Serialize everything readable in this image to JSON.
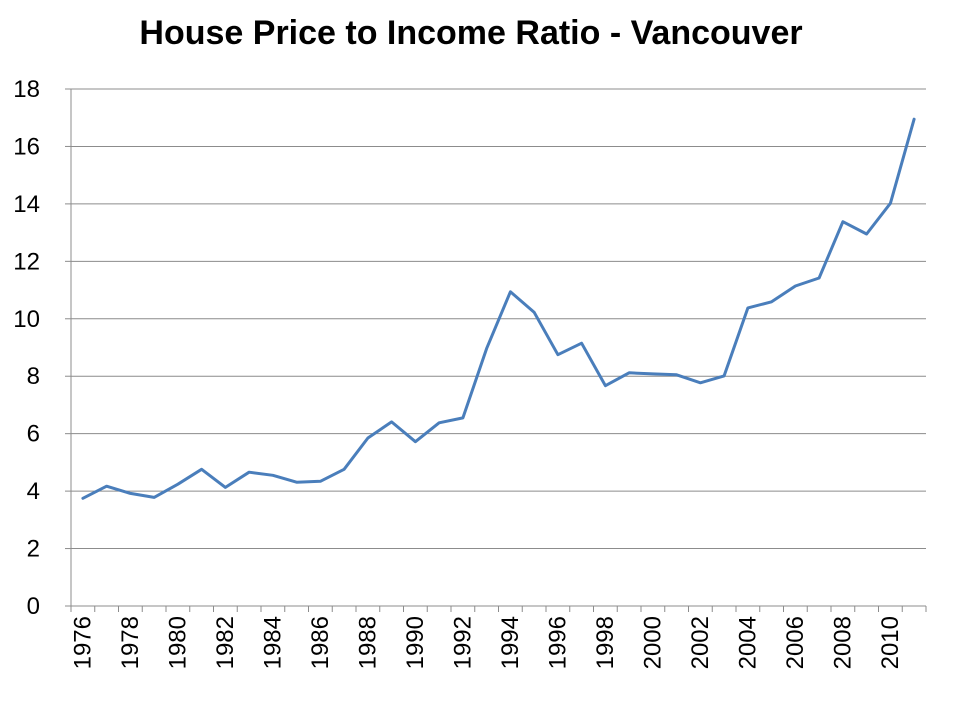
{
  "chart_data": {
    "type": "line",
    "title": "House Price to Income Ratio - Vancouver",
    "xlabel": "",
    "ylabel": "",
    "ylim": [
      0,
      18
    ],
    "y_ticks": [
      0,
      2,
      4,
      6,
      8,
      10,
      12,
      14,
      16,
      18
    ],
    "grid": true,
    "x_tick_labels": [
      "1976",
      "1978",
      "1980",
      "1982",
      "1984",
      "1986",
      "1988",
      "1990",
      "1992",
      "1994",
      "1996",
      "1998",
      "2000",
      "2002",
      "2004",
      "2006",
      "2008",
      "2010"
    ],
    "series_color": "#4a7ebb",
    "series": [
      {
        "name": "House Price to Income Ratio",
        "x": [
          1976,
          1977,
          1978,
          1979,
          1980,
          1981,
          1982,
          1983,
          1984,
          1985,
          1986,
          1987,
          1988,
          1989,
          1990,
          1991,
          1992,
          1993,
          1994,
          1995,
          1996,
          1997,
          1998,
          1999,
          2000,
          2001,
          2002,
          2003,
          2004,
          2005,
          2006,
          2007,
          2008,
          2009,
          2010,
          2011
        ],
        "values": [
          3.75,
          4.17,
          3.92,
          3.78,
          4.24,
          4.76,
          4.13,
          4.66,
          4.55,
          4.31,
          4.34,
          4.76,
          5.85,
          6.41,
          5.72,
          6.38,
          6.55,
          8.96,
          10.94,
          10.23,
          8.75,
          9.15,
          7.67,
          8.12,
          8.08,
          8.05,
          7.77,
          8.01,
          10.38,
          10.59,
          11.14,
          11.42,
          13.38,
          12.95,
          14.02,
          16.95
        ]
      }
    ]
  }
}
